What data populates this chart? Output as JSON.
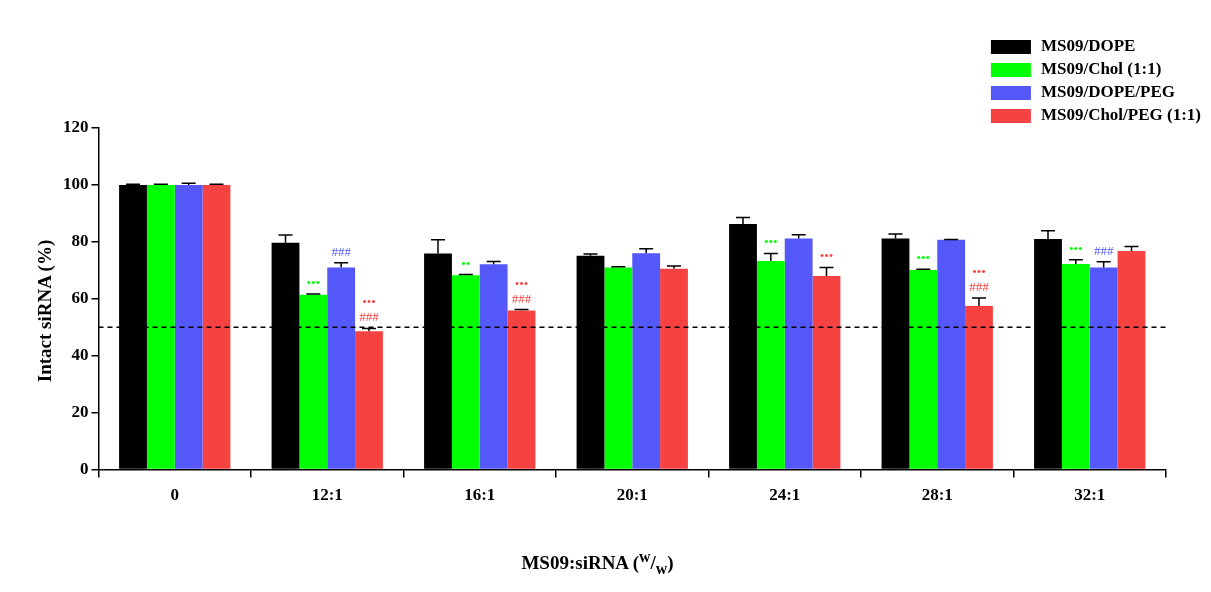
{
  "chart_data": {
    "type": "bar",
    "xlabel": "MS09:siRNA ($^{w}$/$_{w}$)",
    "ylabel": "Intact siRNA (%)",
    "categories": [
      "0",
      "12:1",
      "16:1",
      "20:1",
      "24:1",
      "28:1",
      "32:1"
    ],
    "series": [
      {
        "name": "MS09/DOPE",
        "color": "#000000",
        "values": [
          100,
          79.7,
          75.9,
          75.1,
          86.3,
          81.2,
          81.0
        ],
        "errors": [
          0.2,
          2.7,
          4.8,
          0.6,
          2.3,
          1.6,
          2.9
        ],
        "value_labels": [
          null,
          null,
          null,
          null,
          null,
          null,
          null
        ]
      },
      {
        "name": "MS09/Chol (1:1)",
        "color": "#00ff00",
        "values": [
          100,
          61.4,
          68.3,
          71.0,
          73.3,
          70.1,
          72.2
        ],
        "errors": [
          0.2,
          0.3,
          0.2,
          0.3,
          2.6,
          0.3,
          1.5
        ],
        "value_labels": [
          null,
          "•••",
          "••",
          null,
          "•••",
          "•••",
          "•••"
        ]
      },
      {
        "name": "MS09/DOPE/PEG",
        "color": "#5558f8",
        "values": [
          100,
          71.0,
          72.1,
          76.0,
          81.2,
          80.7,
          71.0
        ],
        "errors": [
          0.6,
          1.7,
          1.0,
          1.6,
          1.3,
          0.1,
          2.0
        ],
        "value_labels": [
          null,
          "###",
          null,
          null,
          null,
          null,
          "###"
        ]
      },
      {
        "name": "MS09/Chol/PEG (1:1)",
        "color": "#f74242",
        "values": [
          100,
          48.6,
          55.9,
          70.6,
          68.0,
          57.5,
          76.8
        ],
        "errors": [
          0.2,
          1.0,
          0.3,
          0.9,
          3.0,
          2.8,
          1.6
        ],
        "value_labels": [
          null,
          "•••\n###",
          "•••\n###",
          null,
          "•••",
          "•••\n###",
          null
        ]
      }
    ],
    "ylim": [
      0,
      120
    ],
    "yticks": [
      0,
      20,
      40,
      60,
      80,
      100,
      120
    ],
    "ref_lines": [
      {
        "axis": "y",
        "value": 50,
        "line_style": "dashed",
        "color": "#000000"
      }
    ],
    "grid": false,
    "legend": "top right"
  }
}
